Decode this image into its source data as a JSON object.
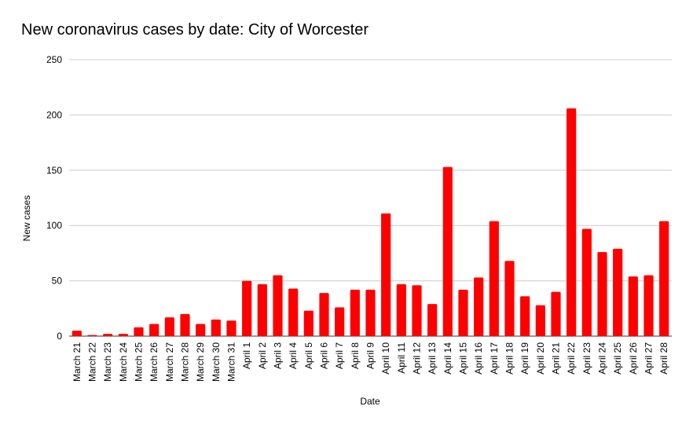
{
  "chart_data": {
    "type": "bar",
    "title": "New coronavirus cases by date: City of Worcester",
    "xlabel": "Date",
    "ylabel": "New cases",
    "ylim": [
      0,
      250
    ],
    "yticks": [
      0,
      50,
      100,
      150,
      200,
      250
    ],
    "grid": true,
    "legend": "none",
    "bar_color": "#ff0000",
    "grid_color": "#cccccc",
    "categories": [
      "March 21",
      "March 22",
      "March 23",
      "March 24",
      "March 25",
      "March 26",
      "March 27",
      "March 28",
      "March 29",
      "March 30",
      "March 31",
      "April 1",
      "April 2",
      "April 3",
      "April 4",
      "April 5",
      "April 6",
      "April 7",
      "April 8",
      "April 9",
      "April 10",
      "April 11",
      "April 12",
      "April 13",
      "April 14",
      "April 15",
      "April 16",
      "April 17",
      "April 18",
      "April 19",
      "April 20",
      "April 21",
      "April 22",
      "April 23",
      "April 24",
      "April 25",
      "April 26",
      "April 27",
      "April 28"
    ],
    "values": [
      5,
      1,
      2,
      2,
      8,
      11,
      17,
      20,
      11,
      15,
      14,
      50,
      47,
      55,
      43,
      23,
      39,
      26,
      42,
      42,
      111,
      47,
      46,
      29,
      153,
      42,
      53,
      104,
      68,
      36,
      28,
      40,
      206,
      97,
      76,
      79,
      54,
      55,
      104
    ]
  }
}
